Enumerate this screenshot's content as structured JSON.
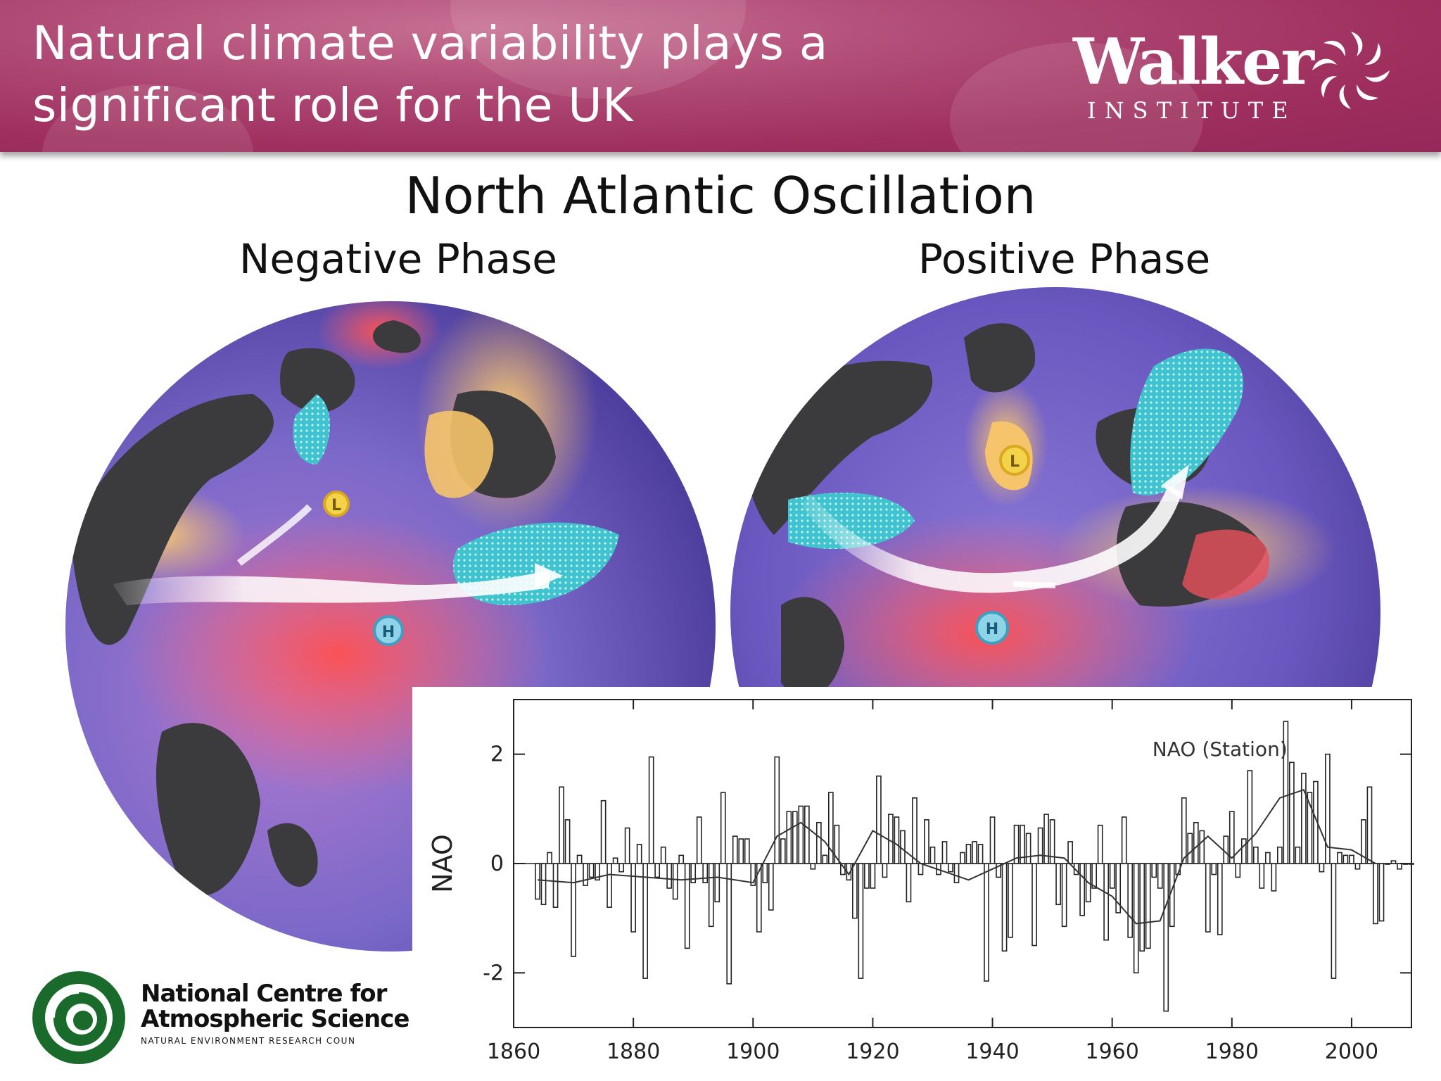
{
  "header": {
    "title": "Natural climate variability plays a significant role for the UK",
    "logo_name": "Walker",
    "logo_sub": "INSTITUTE"
  },
  "main_title": "North Atlantic Oscillation",
  "globes": {
    "negative_label": "Negative Phase",
    "positive_label": "Positive Phase",
    "low_marker": "L",
    "high_marker": "H"
  },
  "ncas": {
    "line1": "National Centre for",
    "line2": "Atmospheric Science",
    "line3": "NATURAL ENVIRONMENT RESEARCH COUN"
  },
  "colors": {
    "header": "#9e2f5e",
    "ocean_purple": "#7a68c8",
    "land_dark": "#3b3b3d",
    "warm_red": "#e8505a",
    "dry_orange": "#f6c46a",
    "wet_cyan": "#3fc4cf",
    "ncas_green": "#1a6a2c"
  },
  "chart_data": {
    "type": "bar",
    "title": "NAO (Station)",
    "xlabel": "",
    "ylabel": "NAO",
    "xlim": [
      1860,
      2010
    ],
    "ylim": [
      -3,
      3
    ],
    "xticks": [
      1860,
      1880,
      1900,
      1920,
      1940,
      1960,
      1980,
      2000
    ],
    "yticks": [
      -2,
      0,
      2
    ],
    "grid": false,
    "start_year": 1864,
    "values": [
      -0.65,
      -0.75,
      0.2,
      -0.8,
      1.4,
      0.8,
      -1.7,
      0.15,
      -0.4,
      -0.25,
      -0.3,
      1.15,
      -0.8,
      0.1,
      -0.15,
      0.65,
      -1.25,
      0.35,
      -2.1,
      1.95,
      -0.25,
      0.3,
      -0.45,
      -0.65,
      0.15,
      -1.55,
      -0.35,
      0.85,
      -0.35,
      -1.15,
      -0.7,
      1.3,
      -2.2,
      0.5,
      0.45,
      0.45,
      -0.4,
      -1.25,
      -0.35,
      -0.85,
      1.95,
      0.45,
      0.95,
      0.95,
      1.05,
      1.05,
      -0.1,
      0.75,
      0.15,
      1.3,
      0.7,
      -0.2,
      -0.3,
      -1.0,
      -2.1,
      -0.45,
      -0.45,
      1.6,
      -0.25,
      0.9,
      0.85,
      0.6,
      -0.7,
      1.2,
      -0.2,
      0.8,
      0.3,
      -0.2,
      0.4,
      -0.15,
      -0.35,
      0.2,
      0.35,
      0.4,
      0.35,
      -2.15,
      0.85,
      -0.25,
      -1.6,
      -1.35,
      0.7,
      0.7,
      0.55,
      -1.5,
      0.65,
      0.9,
      0.8,
      -0.75,
      -1.15,
      0.4,
      -0.2,
      -0.95,
      -0.7,
      -0.45,
      0.7,
      -1.4,
      -0.45,
      -0.9,
      0.85,
      -1.35,
      -2.0,
      -1.6,
      -1.55,
      -0.25,
      -0.45,
      -2.7,
      -1.15,
      -0.2,
      1.2,
      0.55,
      0.75,
      0.6,
      -1.25,
      -0.2,
      -1.3,
      0.5,
      0.95,
      -0.25,
      0.45,
      1.7,
      0.3,
      -0.45,
      0.2,
      -0.5,
      0.3,
      2.6,
      1.85,
      0.3,
      1.65,
      1.3,
      1.5,
      -0.15,
      2.0,
      -2.1,
      0.2,
      0.15,
      0.15,
      -0.1,
      0.8,
      1.4,
      -1.1,
      -1.05,
      0.0,
      0.05,
      -0.1,
      0.0,
      0.0
    ],
    "smooth": {
      "name": "",
      "x": [
        1864,
        1870,
        1876,
        1882,
        1888,
        1894,
        1900,
        1904,
        1908,
        1912,
        1916,
        1920,
        1924,
        1928,
        1932,
        1936,
        1940,
        1944,
        1948,
        1952,
        1956,
        1960,
        1964,
        1968,
        1972,
        1976,
        1980,
        1984,
        1988,
        1992,
        1996,
        2000,
        2004
      ],
      "y": [
        -0.3,
        -0.35,
        -0.2,
        -0.25,
        -0.3,
        -0.25,
        -0.35,
        0.5,
        0.75,
        0.4,
        -0.2,
        0.6,
        0.35,
        0.0,
        -0.15,
        -0.3,
        -0.1,
        0.1,
        0.15,
        0.1,
        -0.35,
        -0.6,
        -1.1,
        -1.05,
        0.1,
        0.5,
        0.1,
        0.55,
        1.2,
        1.35,
        0.3,
        0.25,
        0.0
      ]
    }
  }
}
